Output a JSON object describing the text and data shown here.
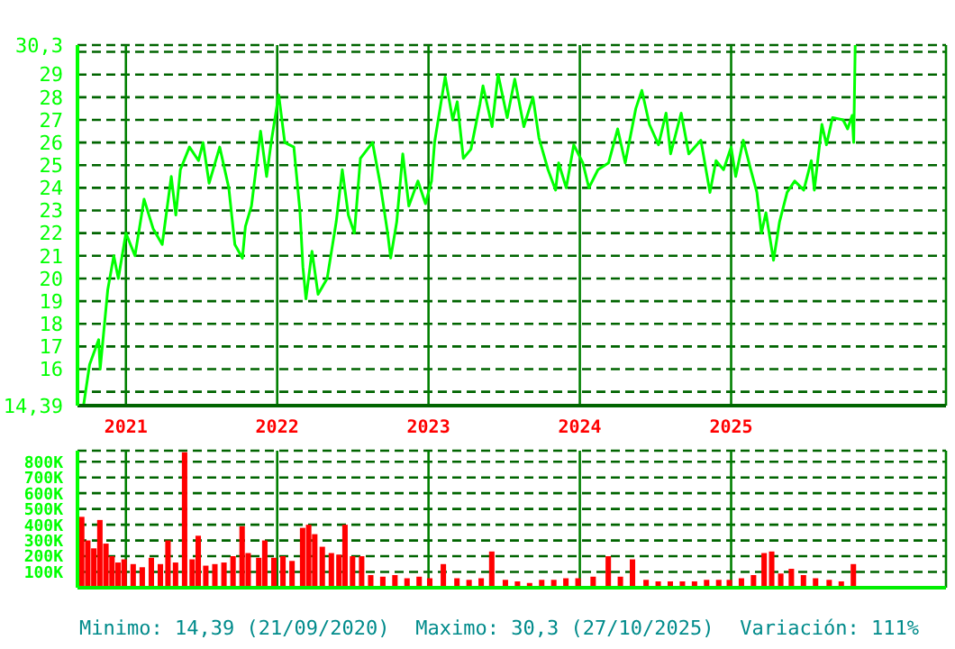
{
  "chart_data": [
    {
      "type": "line",
      "marker": "none",
      "line_style": "solid",
      "grid": true,
      "legend": false,
      "x": [
        2020.72,
        2020.76,
        2020.82,
        2020.83,
        2020.88,
        2020.92,
        2020.95,
        2021.0,
        2021.06,
        2021.12,
        2021.18,
        2021.24,
        2021.3,
        2021.33,
        2021.36,
        2021.42,
        2021.48,
        2021.51,
        2021.55,
        2021.62,
        2021.68,
        2021.72,
        2021.77,
        2021.79,
        2021.83,
        2021.89,
        2021.93,
        2021.96,
        2022.01,
        2022.05,
        2022.11,
        2022.15,
        2022.17,
        2022.19,
        2022.23,
        2022.27,
        2022.33,
        2022.39,
        2022.43,
        2022.47,
        2022.51,
        2022.55,
        2022.63,
        2022.68,
        2022.73,
        2022.75,
        2022.79,
        2022.83,
        2022.87,
        2022.93,
        2022.98,
        2023.02,
        2023.04,
        2023.11,
        2023.16,
        2023.19,
        2023.23,
        2023.28,
        2023.34,
        2023.36,
        2023.42,
        2023.46,
        2023.52,
        2023.57,
        2023.63,
        2023.69,
        2023.73,
        2023.79,
        2023.84,
        2023.86,
        2023.91,
        2023.96,
        2024.02,
        2024.06,
        2024.12,
        2024.19,
        2024.25,
        2024.3,
        2024.37,
        2024.41,
        2024.46,
        2024.52,
        2024.57,
        2024.6,
        2024.67,
        2024.72,
        2024.8,
        2024.86,
        2024.9,
        2024.95,
        2025.0,
        2025.03,
        2025.08,
        2025.13,
        2025.17,
        2025.2,
        2025.23,
        2025.28,
        2025.32,
        2025.37,
        2025.42,
        2025.48,
        2025.53,
        2025.55,
        2025.6,
        2025.63,
        2025.67,
        2025.74,
        2025.77,
        2025.8,
        2025.81,
        2025.815,
        2025.82
      ],
      "series": [
        {
          "color": "#00ff00",
          "values": [
            14.39,
            16.2,
            17.3,
            16.0,
            19.5,
            21.0,
            20.0,
            22.0,
            21.0,
            23.5,
            22.2,
            21.5,
            24.5,
            22.8,
            24.8,
            25.8,
            25.2,
            26.0,
            24.2,
            25.8,
            24.0,
            21.5,
            20.9,
            22.3,
            23.2,
            26.5,
            24.5,
            26.0,
            28.1,
            26.0,
            25.8,
            23.0,
            20.5,
            19.1,
            21.2,
            19.3,
            20.0,
            22.5,
            24.8,
            22.8,
            22.0,
            25.3,
            26.0,
            24.2,
            22.0,
            20.9,
            22.5,
            25.5,
            23.2,
            24.3,
            23.3,
            24.3,
            26.0,
            28.9,
            27.0,
            27.8,
            25.3,
            25.7,
            27.7,
            28.5,
            26.7,
            29.0,
            27.1,
            28.8,
            26.7,
            28.0,
            26.2,
            24.8,
            23.9,
            25.1,
            24.0,
            25.9,
            25.1,
            24.0,
            24.8,
            25.1,
            26.6,
            25.1,
            27.5,
            28.3,
            26.8,
            25.9,
            27.3,
            25.5,
            27.3,
            25.5,
            26.1,
            23.8,
            25.2,
            24.8,
            25.8,
            24.5,
            26.1,
            24.8,
            23.8,
            22.0,
            22.9,
            20.8,
            22.5,
            23.8,
            24.3,
            23.9,
            25.2,
            23.9,
            26.8,
            25.9,
            27.1,
            27.0,
            26.6,
            27.2,
            26.0,
            28.1,
            30.3
          ]
        }
      ],
      "xlim": [
        2020.68,
        2026.42
      ],
      "xticks": [
        2021,
        2022,
        2023,
        2024,
        2025
      ],
      "ylim": [
        14.39,
        30.3
      ],
      "yticks": [
        {
          "value": 14.39,
          "label": "14,39"
        },
        {
          "value": 15,
          "label": null
        },
        16,
        17,
        18,
        19,
        20,
        21,
        22,
        23,
        24,
        25,
        26,
        27,
        28,
        29,
        {
          "value": 30,
          "label": null
        },
        {
          "value": 30.3,
          "label": "30,3"
        }
      ]
    },
    {
      "type": "bar",
      "grid": true,
      "legend": false,
      "tick_labels": "y",
      "color": "#ff0000",
      "x": [
        2020.71,
        2020.75,
        2020.79,
        2020.83,
        2020.87,
        2020.91,
        2020.95,
        2020.99,
        2021.05,
        2021.11,
        2021.17,
        2021.23,
        2021.28,
        2021.33,
        2021.39,
        2021.44,
        2021.48,
        2021.53,
        2021.59,
        2021.65,
        2021.71,
        2021.77,
        2021.81,
        2021.88,
        2021.92,
        2021.98,
        2022.04,
        2022.1,
        2022.17,
        2022.21,
        2022.25,
        2022.3,
        2022.36,
        2022.41,
        2022.45,
        2022.5,
        2022.56,
        2022.62,
        2022.7,
        2022.78,
        2022.86,
        2022.94,
        2023.01,
        2023.1,
        2023.19,
        2023.27,
        2023.35,
        2023.42,
        2023.51,
        2023.59,
        2023.67,
        2023.75,
        2023.83,
        2023.91,
        2023.99,
        2024.09,
        2024.19,
        2024.27,
        2024.35,
        2024.44,
        2024.52,
        2024.6,
        2024.68,
        2024.76,
        2024.84,
        2024.92,
        2024.99,
        2025.07,
        2025.15,
        2025.22,
        2025.27,
        2025.33,
        2025.4,
        2025.48,
        2025.56,
        2025.65,
        2025.73,
        2025.81
      ],
      "values": [
        450000,
        300000,
        250000,
        430000,
        280000,
        200000,
        160000,
        180000,
        150000,
        130000,
        190000,
        150000,
        300000,
        160000,
        860000,
        180000,
        330000,
        140000,
        150000,
        160000,
        200000,
        390000,
        220000,
        190000,
        300000,
        190000,
        200000,
        170000,
        380000,
        400000,
        340000,
        260000,
        220000,
        210000,
        400000,
        200000,
        200000,
        80000,
        70000,
        80000,
        60000,
        70000,
        60000,
        150000,
        60000,
        50000,
        60000,
        230000,
        50000,
        40000,
        30000,
        50000,
        50000,
        60000,
        60000,
        70000,
        200000,
        70000,
        180000,
        50000,
        40000,
        40000,
        40000,
        40000,
        50000,
        50000,
        50000,
        60000,
        80000,
        220000,
        230000,
        90000,
        120000,
        80000,
        60000,
        50000,
        40000,
        150000
      ],
      "xlim": [
        2020.68,
        2026.42
      ],
      "xticks": [
        {
          "value": 2021,
          "label": null
        },
        {
          "value": 2022,
          "label": null
        },
        {
          "value": 2023,
          "label": null
        },
        {
          "value": 2024,
          "label": null
        },
        {
          "value": 2025,
          "label": null
        }
      ],
      "ylim": [
        0,
        870000
      ],
      "yticks": [
        {
          "value": 100000,
          "label": "100K"
        },
        {
          "value": 200000,
          "label": "200K"
        },
        {
          "value": 300000,
          "label": "300K"
        },
        {
          "value": 400000,
          "label": "400K"
        },
        {
          "value": 500000,
          "label": "500K"
        },
        {
          "value": 600000,
          "label": "600K"
        },
        {
          "value": 700000,
          "label": "700K"
        },
        {
          "value": 800000,
          "label": "800K"
        }
      ],
      "annotations": [
        "Minimo: 14,39 (21/09/2020)",
        "Maximo: 30,3 (27/10/2025)",
        "Variación: 111%"
      ]
    }
  ]
}
